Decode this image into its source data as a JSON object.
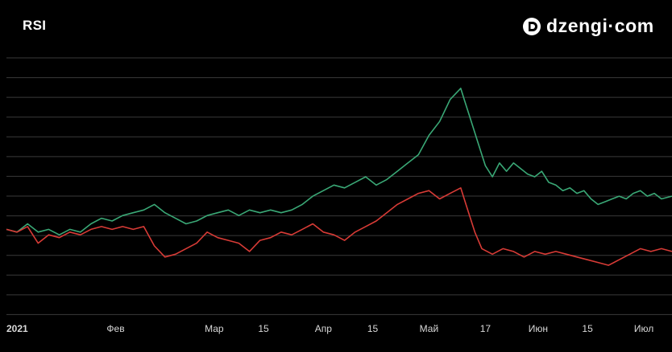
{
  "title": "RSI",
  "brand": "dzengi·com",
  "colors": {
    "background": "#000000",
    "grid": "#3a3a3a",
    "series_upper": "#3aa876",
    "series_lower": "#d83b36",
    "text": "#ffffff"
  },
  "chart_data": {
    "type": "line",
    "title": "RSI",
    "grid": true,
    "x_ticks": [
      {
        "label": "2021",
        "day": 0
      },
      {
        "label": "Фев",
        "day": 31
      },
      {
        "label": "Мар",
        "day": 59
      },
      {
        "label": "15",
        "day": 73
      },
      {
        "label": "Апр",
        "day": 90
      },
      {
        "label": "15",
        "day": 104
      },
      {
        "label": "Май",
        "day": 120
      },
      {
        "label": "17",
        "day": 136
      },
      {
        "label": "Июн",
        "day": 151
      },
      {
        "label": "15",
        "day": 165
      },
      {
        "label": "Июл",
        "day": 181
      }
    ],
    "x_range": [
      0,
      189
    ],
    "y_range": [
      0,
      100
    ],
    "series": [
      {
        "points": [
          [
            0,
            31
          ],
          [
            3,
            30
          ],
          [
            6,
            33
          ],
          [
            9,
            30
          ],
          [
            12,
            31
          ],
          [
            15,
            29
          ],
          [
            18,
            31
          ],
          [
            21,
            30
          ],
          [
            24,
            33
          ],
          [
            27,
            35
          ],
          [
            30,
            34
          ],
          [
            33,
            36
          ],
          [
            36,
            37
          ],
          [
            39,
            38
          ],
          [
            42,
            40
          ],
          [
            45,
            37
          ],
          [
            48,
            35
          ],
          [
            51,
            33
          ],
          [
            54,
            34
          ],
          [
            57,
            36
          ],
          [
            60,
            37
          ],
          [
            63,
            38
          ],
          [
            66,
            36
          ],
          [
            69,
            38
          ],
          [
            72,
            37
          ],
          [
            75,
            38
          ],
          [
            78,
            37
          ],
          [
            81,
            38
          ],
          [
            84,
            40
          ],
          [
            87,
            43
          ],
          [
            90,
            45
          ],
          [
            93,
            47
          ],
          [
            96,
            46
          ],
          [
            99,
            48
          ],
          [
            102,
            50
          ],
          [
            105,
            47
          ],
          [
            108,
            49
          ],
          [
            111,
            52
          ],
          [
            114,
            55
          ],
          [
            117,
            58
          ],
          [
            120,
            65
          ],
          [
            123,
            70
          ],
          [
            126,
            78
          ],
          [
            129,
            82
          ],
          [
            130,
            78
          ],
          [
            132,
            70
          ],
          [
            134,
            62
          ],
          [
            136,
            54
          ],
          [
            138,
            50
          ],
          [
            140,
            55
          ],
          [
            142,
            52
          ],
          [
            144,
            55
          ],
          [
            146,
            53
          ],
          [
            148,
            51
          ],
          [
            150,
            50
          ],
          [
            152,
            52
          ],
          [
            154,
            48
          ],
          [
            156,
            47
          ],
          [
            158,
            45
          ],
          [
            160,
            46
          ],
          [
            162,
            44
          ],
          [
            164,
            45
          ],
          [
            166,
            42
          ],
          [
            168,
            40
          ],
          [
            170,
            41
          ],
          [
            172,
            42
          ],
          [
            174,
            43
          ],
          [
            176,
            42
          ],
          [
            178,
            44
          ],
          [
            180,
            45
          ],
          [
            182,
            43
          ],
          [
            184,
            44
          ],
          [
            186,
            42
          ],
          [
            189,
            43
          ]
        ]
      },
      {
        "points": [
          [
            0,
            31
          ],
          [
            3,
            30
          ],
          [
            6,
            32
          ],
          [
            9,
            26
          ],
          [
            12,
            29
          ],
          [
            15,
            28
          ],
          [
            18,
            30
          ],
          [
            21,
            29
          ],
          [
            24,
            31
          ],
          [
            27,
            32
          ],
          [
            30,
            31
          ],
          [
            33,
            32
          ],
          [
            36,
            31
          ],
          [
            39,
            32
          ],
          [
            42,
            25
          ],
          [
            45,
            21
          ],
          [
            48,
            22
          ],
          [
            51,
            24
          ],
          [
            54,
            26
          ],
          [
            57,
            30
          ],
          [
            60,
            28
          ],
          [
            63,
            27
          ],
          [
            66,
            26
          ],
          [
            69,
            23
          ],
          [
            72,
            27
          ],
          [
            75,
            28
          ],
          [
            78,
            30
          ],
          [
            81,
            29
          ],
          [
            84,
            31
          ],
          [
            87,
            33
          ],
          [
            90,
            30
          ],
          [
            93,
            29
          ],
          [
            96,
            27
          ],
          [
            99,
            30
          ],
          [
            102,
            32
          ],
          [
            105,
            34
          ],
          [
            108,
            37
          ],
          [
            111,
            40
          ],
          [
            114,
            42
          ],
          [
            117,
            44
          ],
          [
            120,
            45
          ],
          [
            123,
            42
          ],
          [
            126,
            44
          ],
          [
            129,
            46
          ],
          [
            131,
            38
          ],
          [
            133,
            30
          ],
          [
            135,
            24
          ],
          [
            138,
            22
          ],
          [
            141,
            24
          ],
          [
            144,
            23
          ],
          [
            147,
            21
          ],
          [
            150,
            23
          ],
          [
            153,
            22
          ],
          [
            156,
            23
          ],
          [
            159,
            22
          ],
          [
            162,
            21
          ],
          [
            165,
            20
          ],
          [
            168,
            19
          ],
          [
            171,
            18
          ],
          [
            174,
            20
          ],
          [
            177,
            22
          ],
          [
            180,
            24
          ],
          [
            183,
            23
          ],
          [
            186,
            24
          ],
          [
            189,
            23
          ]
        ]
      }
    ]
  }
}
